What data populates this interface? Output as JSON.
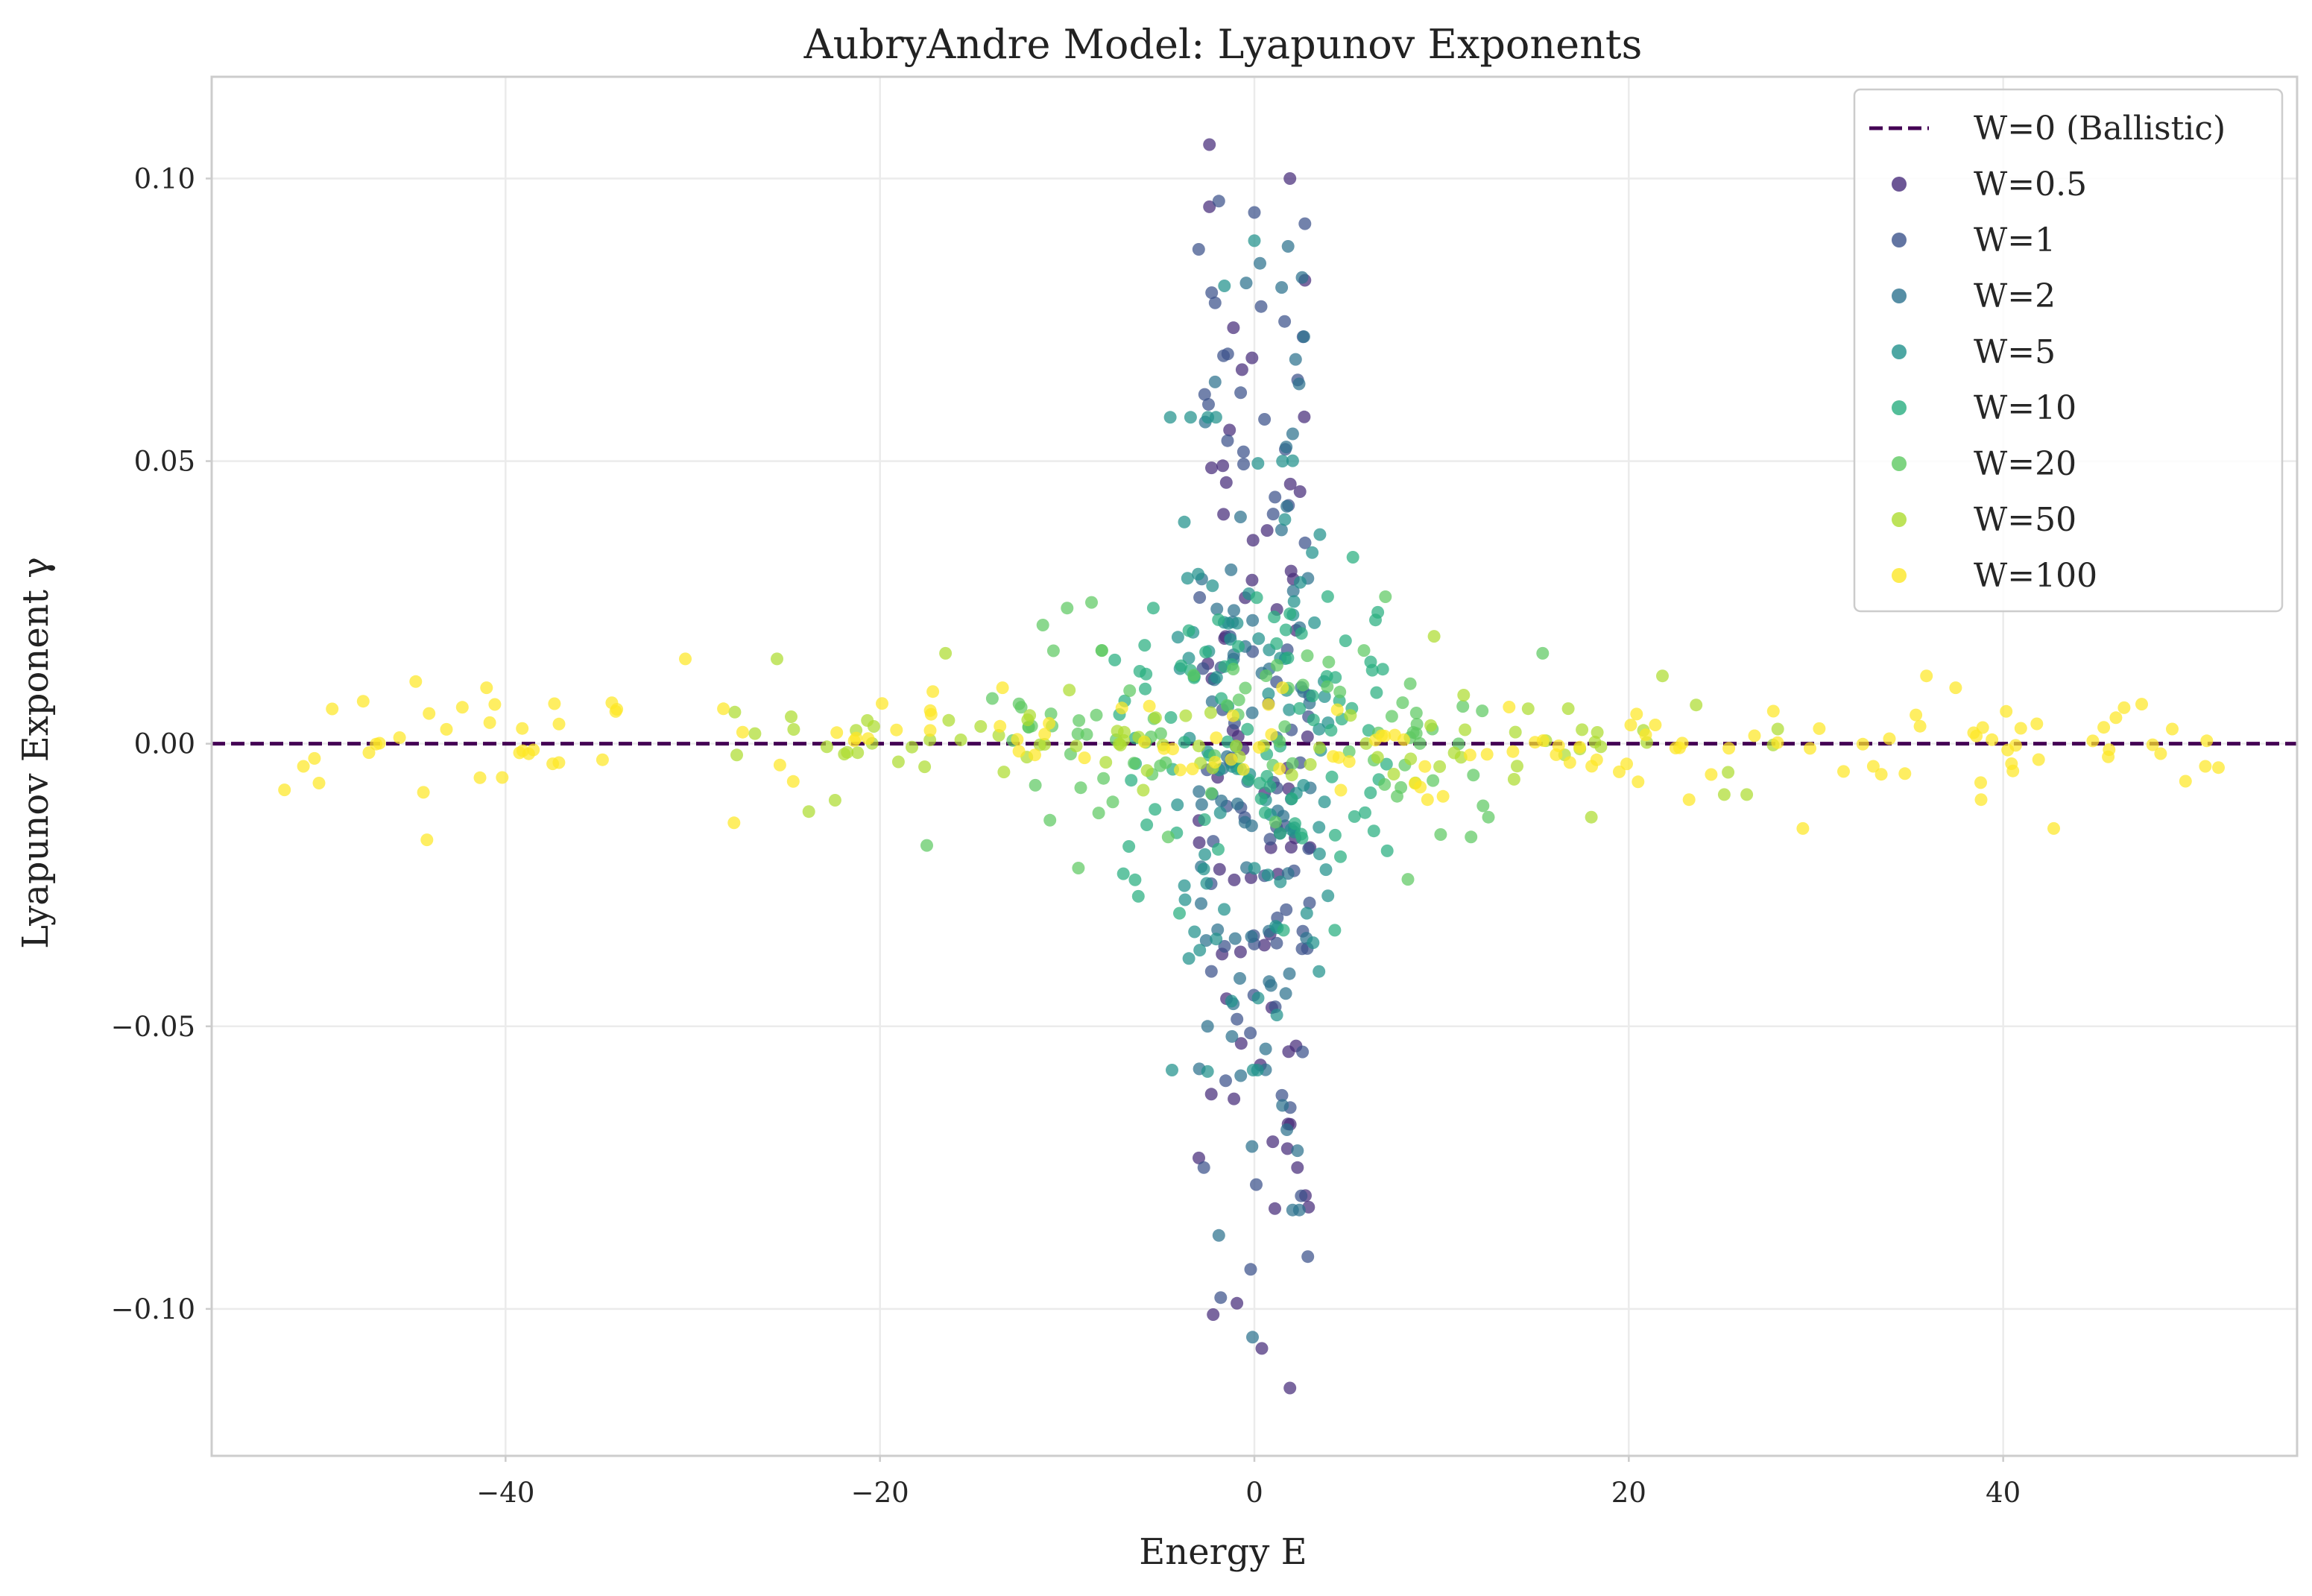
{
  "chart_data": {
    "type": "scatter",
    "title": "AubryAndre Model: Lyapunov Exponents",
    "xlabel": "Energy E",
    "ylabel": "Lyapunov Exponent γ",
    "xlim": [
      -55.7,
      55.7
    ],
    "ylim": [
      -0.126,
      0.118
    ],
    "xticks": [
      -40,
      -20,
      0,
      20,
      40
    ],
    "xtick_labels": [
      "−40",
      "−20",
      "0",
      "20",
      "40"
    ],
    "yticks": [
      0.1,
      0.05,
      0.0,
      -0.05,
      -0.1
    ],
    "ytick_labels": [
      "0.10",
      "0.05",
      "0.00",
      "−0.05",
      "−0.10"
    ],
    "grid": true,
    "legend_position": "top-right",
    "reference_line": {
      "label": "W=0 (Ballistic)",
      "y": 0.0,
      "style": "dashed",
      "color": "#440154"
    },
    "series": [
      {
        "name": "W=0.5",
        "color": "#472c7a",
        "spread": 3.0,
        "amp": 0.06,
        "count": 60,
        "sample_points": [
          [
            -2.4,
            0.106
          ],
          [
            1.9,
            0.1
          ],
          [
            -2.4,
            0.095
          ],
          [
            2.7,
            0.082
          ],
          [
            -2.2,
            -0.101
          ],
          [
            0.4,
            -0.107
          ],
          [
            1.9,
            -0.114
          ],
          [
            -2.3,
            -0.062
          ],
          [
            2.9,
            -0.082
          ],
          [
            2.3,
            -0.075
          ]
        ]
      },
      {
        "name": "W=1",
        "color": "#3b528b",
        "spread": 3.0,
        "amp": 0.055,
        "count": 70,
        "sample_points": [
          [
            -1.9,
            0.096
          ],
          [
            0.0,
            0.094
          ],
          [
            2.7,
            0.092
          ],
          [
            -2.1,
            0.078
          ],
          [
            2.6,
            0.072
          ],
          [
            -1.8,
            -0.098
          ],
          [
            -0.2,
            -0.093
          ],
          [
            0.1,
            -0.078
          ],
          [
            2.5,
            -0.08
          ],
          [
            -2.7,
            -0.075
          ]
        ]
      },
      {
        "name": "W=2",
        "color": "#2c728e",
        "spread": 3.0,
        "amp": 0.05,
        "count": 70,
        "sample_points": [
          [
            -1.9,
            -0.087
          ],
          [
            1.8,
            0.088
          ],
          [
            0.3,
            0.085
          ],
          [
            2.2,
            0.068
          ],
          [
            -2.1,
            0.064
          ],
          [
            -0.1,
            -0.105
          ],
          [
            1.5,
            -0.064
          ],
          [
            2.3,
            -0.072
          ],
          [
            -2.5,
            -0.05
          ],
          [
            0.6,
            -0.054
          ]
        ]
      },
      {
        "name": "W=5",
        "color": "#21918c",
        "spread": 4.5,
        "amp": 0.035,
        "count": 80,
        "sample_points": [
          [
            -1.6,
            0.081
          ],
          [
            0.0,
            0.089
          ],
          [
            1.5,
            0.05
          ],
          [
            -3.0,
            0.03
          ],
          [
            3.5,
            0.037
          ],
          [
            -2.5,
            -0.058
          ],
          [
            1.2,
            -0.048
          ],
          [
            -3.5,
            -0.038
          ],
          [
            0.2,
            -0.045
          ],
          [
            2.8,
            -0.03
          ]
        ]
      },
      {
        "name": "W=10",
        "color": "#28ae80",
        "spread": 7.5,
        "amp": 0.02,
        "count": 80,
        "sample_points": [
          [
            -5.4,
            0.024
          ],
          [
            -3.5,
            0.02
          ],
          [
            1.9,
            0.023
          ],
          [
            -6.2,
            -0.027
          ],
          [
            -7.0,
            -0.023
          ],
          [
            4.6,
            -0.02
          ],
          [
            -1.2,
            0.014
          ],
          [
            6.3,
            0.013
          ],
          [
            -4.0,
            -0.03
          ],
          [
            2.5,
            -0.016
          ]
        ]
      },
      {
        "name": "W=20",
        "color": "#5ec962",
        "spread": 13.0,
        "amp": 0.01,
        "count": 80,
        "sample_points": [
          [
            -10.0,
            0.024
          ],
          [
            -8.7,
            0.025
          ],
          [
            7.0,
            0.026
          ],
          [
            -17.5,
            -0.018
          ],
          [
            -9.4,
            -0.022
          ],
          [
            8.2,
            -0.024
          ],
          [
            15.4,
            0.016
          ],
          [
            -11.3,
            0.021
          ],
          [
            12.5,
            -0.013
          ],
          [
            -14.0,
            0.008
          ]
        ]
      },
      {
        "name": "W=50",
        "color": "#addc30",
        "spread": 28.0,
        "amp": 0.006,
        "count": 80,
        "sample_points": [
          [
            -25.5,
            0.015
          ],
          [
            21.8,
            0.012
          ],
          [
            -22.4,
            -0.01
          ],
          [
            -23.8,
            -0.012
          ],
          [
            25.1,
            -0.009
          ],
          [
            26.3,
            -0.009
          ],
          [
            -16.5,
            0.016
          ],
          [
            9.6,
            0.019
          ],
          [
            18.0,
            -0.013
          ],
          [
            -12.0,
            0.005
          ]
        ]
      },
      {
        "name": "W=100",
        "color": "#fde725",
        "spread": 52.0,
        "amp": 0.006,
        "count": 150,
        "sample_points": [
          [
            -44.8,
            0.011
          ],
          [
            -44.2,
            -0.017
          ],
          [
            -30.4,
            0.015
          ],
          [
            -27.8,
            -0.014
          ],
          [
            35.9,
            0.012
          ],
          [
            42.7,
            -0.015
          ],
          [
            47.4,
            0.007
          ],
          [
            50.8,
            -0.004
          ],
          [
            -50.8,
            -0.004
          ],
          [
            29.3,
            -0.015
          ]
        ]
      }
    ]
  }
}
